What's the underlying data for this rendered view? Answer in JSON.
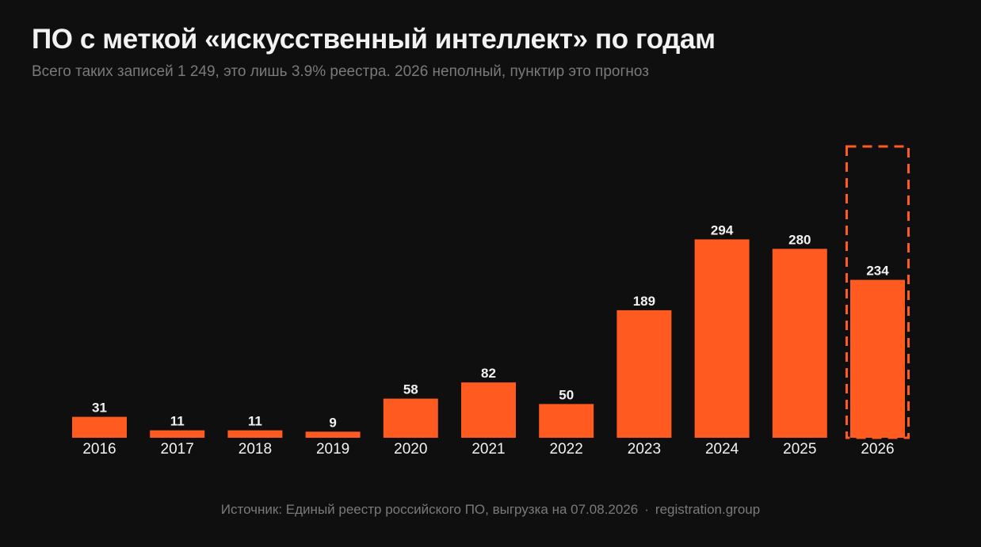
{
  "title": "ПО с меткой «искусственный интеллект» по годам",
  "subtitle": "Всего таких записей 1 249, это лишь 3.9% реестра. 2026 неполный, пунктир это прогноз",
  "footer": {
    "source": "Источник: Единый реестр российского ПО, выгрузка на 07.08.2026",
    "separator": "·",
    "site": "registration.group"
  },
  "colors": {
    "background": "#0f0f0f",
    "bar": "#ff5a1f",
    "text": "#f2f2f2",
    "muted": "#7a7a7a"
  },
  "chart_data": {
    "type": "bar",
    "categories": [
      "2016",
      "2017",
      "2018",
      "2019",
      "2020",
      "2021",
      "2022",
      "2023",
      "2024",
      "2025",
      "2026"
    ],
    "values": [
      31,
      11,
      11,
      9,
      58,
      82,
      50,
      189,
      294,
      280,
      234
    ],
    "forecast_category": "2026",
    "forecast_style": "dashed outline",
    "ylim": [
      0,
      420
    ],
    "grid": false,
    "legend": "none",
    "xlabel": "",
    "ylabel": ""
  }
}
